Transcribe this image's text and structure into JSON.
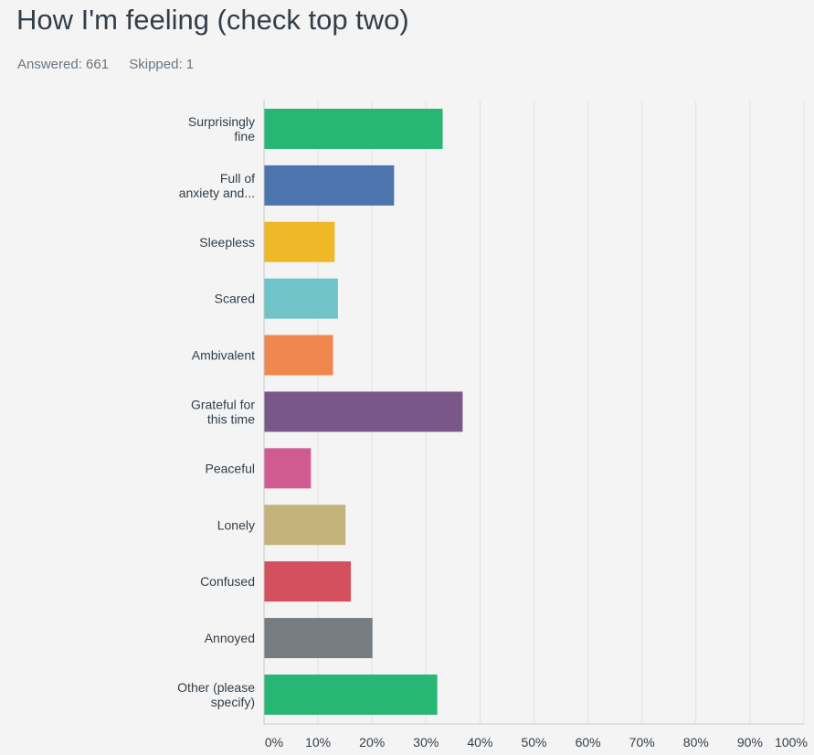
{
  "header": {
    "title": "How I'm feeling (check top two)",
    "answered": "Answered: 661",
    "skipped": "Skipped: 1"
  },
  "chart_data": {
    "type": "bar",
    "orientation": "horizontal",
    "title": "How I'm feeling (check top two)",
    "xlabel": "",
    "ylabel": "",
    "xlim": [
      0,
      100
    ],
    "grid": true,
    "categories": [
      [
        "Surprisingly",
        "fine"
      ],
      [
        "Full of",
        "anxiety and..."
      ],
      [
        "Sleepless"
      ],
      [
        "Scared"
      ],
      [
        "Ambivalent"
      ],
      [
        "Grateful for",
        "this time"
      ],
      [
        "Peaceful"
      ],
      [
        "Lonely"
      ],
      [
        "Confused"
      ],
      [
        "Annoyed"
      ],
      [
        "Other (please",
        "specify)"
      ]
    ],
    "values": [
      33,
      24,
      13,
      13.6,
      12.7,
      36.7,
      8.6,
      15,
      16,
      20,
      32
    ],
    "colors": [
      "#27b673",
      "#4c74ad",
      "#eeb826",
      "#6ec4c9",
      "#f0874e",
      "#795889",
      "#cf5b91",
      "#c3b27a",
      "#d4505e",
      "#757d82",
      "#27b673"
    ],
    "x_ticks": [
      "0%",
      "10%",
      "20%",
      "30%",
      "40%",
      "50%",
      "60%",
      "70%",
      "80%",
      "90%",
      "100%"
    ]
  }
}
